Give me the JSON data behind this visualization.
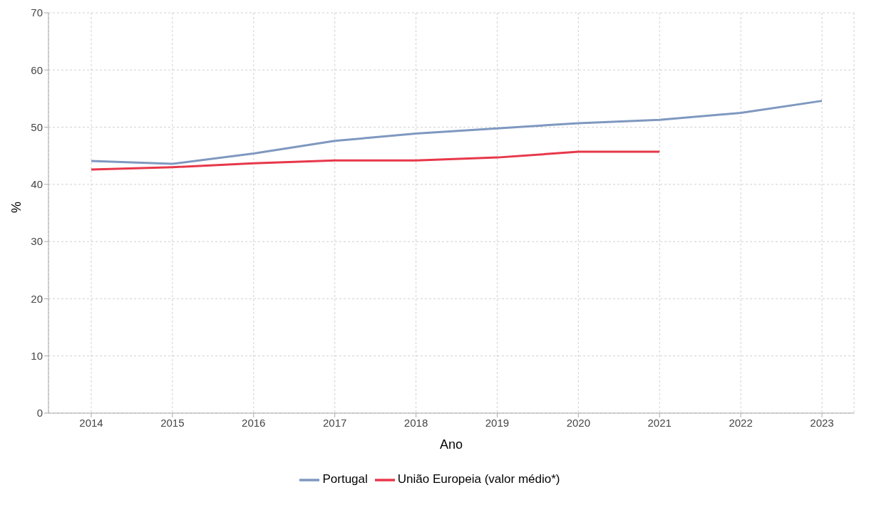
{
  "chart_data": {
    "type": "line",
    "xlabel": "Ano",
    "ylabel": "%",
    "categories": [
      "2014",
      "2015",
      "2016",
      "2017",
      "2018",
      "2019",
      "2020",
      "2021",
      "2022",
      "2023"
    ],
    "series": [
      {
        "name": "Portugal",
        "color": "#7f98c0",
        "values": [
          44.1,
          43.6,
          45.4,
          47.6,
          48.9,
          49.8,
          50.7,
          51.3,
          52.5,
          54.6
        ]
      },
      {
        "name": "União Europeia (valor médio*)",
        "color": "#e8374a",
        "values": [
          42.6,
          43.0,
          43.7,
          44.2,
          44.2,
          44.7,
          45.7,
          45.7,
          null,
          null
        ]
      }
    ],
    "ylim": [
      0,
      70
    ],
    "yticks": [
      0,
      10,
      20,
      30,
      40,
      50,
      60,
      70
    ],
    "grid": true,
    "legend": "bottom",
    "marker": "none",
    "line_style": "solid"
  }
}
